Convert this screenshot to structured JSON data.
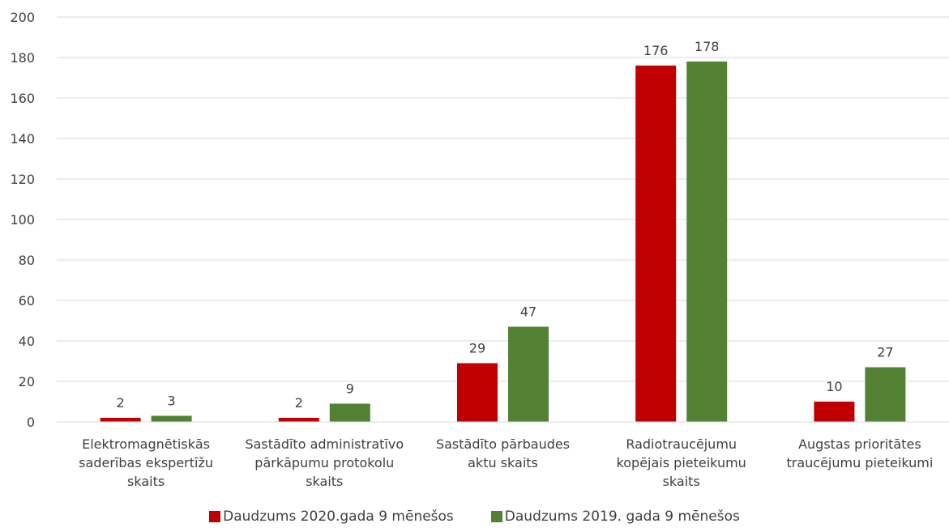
{
  "chart_data": {
    "type": "bar",
    "categories": [
      "Elektromagnētiskās saderības ekspertīžu skaits",
      "Sastādīto administratīvo pārkāpumu protokolu skaits",
      "Sastādīto pārbaudes aktu skaits",
      "Radiotraucējumu kopējais pieteikumu skaits",
      "Augstas prioritātes traucējumu pieteikumi"
    ],
    "category_lines": [
      [
        "Elektromagnētiskās",
        "saderības ekspertīžu",
        "skaits"
      ],
      [
        "Sastādīto administratīvo",
        "pārkāpumu protokolu",
        "skaits"
      ],
      [
        "Sastādīto pārbaudes",
        "aktu skaits"
      ],
      [
        "Radiotraucējumu",
        "kopējais pieteikumu",
        "skaits"
      ],
      [
        "Augstas prioritātes",
        "traucējumu pieteikumi"
      ]
    ],
    "series": [
      {
        "name": "Daudzums 2020.gada 9 mēnešos",
        "color": "#c00000",
        "values": [
          2,
          2,
          29,
          176,
          10
        ]
      },
      {
        "name": "Daudzums 2019. gada 9 mēnešos",
        "color": "#548235",
        "values": [
          3,
          9,
          47,
          178,
          27
        ]
      }
    ],
    "yticks": [
      0,
      20,
      40,
      60,
      80,
      100,
      120,
      140,
      160,
      180,
      200
    ],
    "ylim": [
      0,
      200
    ],
    "grid": true,
    "legend_position": "bottom",
    "title": "",
    "xlabel": "",
    "ylabel": ""
  }
}
